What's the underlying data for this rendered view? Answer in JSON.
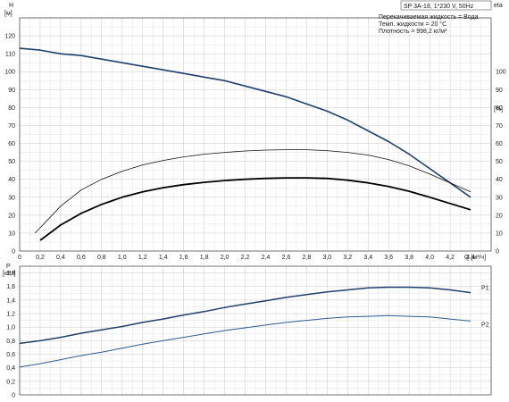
{
  "chart_data": [
    {
      "type": "line",
      "title": "SP 3A-18, 1*230 V, 50Hz",
      "notes": [
        "Перекачиваемая жидкость = Вода",
        "Темп. жидкости = 20 °C",
        "Плотность = 998,2 кг/м³"
      ],
      "xlabel": "Q [м³/ч]",
      "xlim": [
        0,
        4.6
      ],
      "xticks": [
        "0",
        "0,2",
        "0,4",
        "0,6",
        "0,8",
        "1,0",
        "1,2",
        "1,4",
        "1,6",
        "1,8",
        "2,0",
        "2,2",
        "2,4",
        "2,6",
        "2,8",
        "3,0",
        "3,2",
        "3,4",
        "3,6",
        "3,8",
        "4,0",
        "4,2",
        "4,4"
      ],
      "left_axis": {
        "label": "H",
        "unit": "[м]",
        "lim": [
          0,
          130
        ],
        "ticks": [
          "0",
          "10",
          "20",
          "30",
          "40",
          "50",
          "60",
          "70",
          "80",
          "90",
          "100",
          "110",
          "120"
        ]
      },
      "right_axis": {
        "label": "eta",
        "unit": "[%]",
        "lim": [
          0,
          130
        ],
        "ticks": [
          "0",
          "10",
          "20",
          "30",
          "40",
          "50",
          "60",
          "70",
          "80",
          "90",
          "100"
        ]
      },
      "grid": true,
      "series": [
        {
          "axis": "left",
          "color": "#1f3f6e",
          "width": 1.6,
          "x": [
            0,
            0.2,
            0.4,
            0.6,
            0.8,
            1.0,
            1.2,
            1.4,
            1.6,
            1.8,
            2.0,
            2.2,
            2.4,
            2.6,
            2.8,
            3.0,
            3.2,
            3.4,
            3.6,
            3.8,
            4.0,
            4.2,
            4.4
          ],
          "y": [
            113,
            112,
            110,
            109,
            107,
            105,
            103,
            101,
            99,
            97,
            95,
            92,
            89,
            86,
            82,
            78,
            73,
            67,
            61,
            54,
            46,
            38,
            30
          ]
        },
        {
          "axis": "right",
          "color": "#111111",
          "width": 0.8,
          "x": [
            0.15,
            0.2,
            0.4,
            0.6,
            0.8,
            1.0,
            1.2,
            1.4,
            1.6,
            1.8,
            2.0,
            2.2,
            2.4,
            2.6,
            2.8,
            3.0,
            3.2,
            3.4,
            3.6,
            3.8,
            4.0,
            4.2,
            4.4
          ],
          "y": [
            10,
            13,
            25,
            34,
            40,
            44.5,
            48,
            50.5,
            52.5,
            54,
            55,
            55.8,
            56.3,
            56.5,
            56.5,
            56,
            55,
            53.5,
            51,
            47.5,
            43,
            38,
            33
          ]
        },
        {
          "axis": "right",
          "color": "#000000",
          "width": 1.8,
          "x": [
            0.2,
            0.4,
            0.6,
            0.8,
            1.0,
            1.2,
            1.4,
            1.6,
            1.8,
            2.0,
            2.2,
            2.4,
            2.6,
            2.8,
            3.0,
            3.2,
            3.4,
            3.6,
            3.8,
            4.0,
            4.2,
            4.4
          ],
          "y": [
            6,
            14.5,
            21,
            26,
            30,
            33,
            35.3,
            37,
            38.3,
            39.3,
            40,
            40.5,
            40.8,
            40.8,
            40.5,
            39.5,
            38,
            36,
            33.3,
            30,
            26.5,
            23
          ]
        }
      ]
    },
    {
      "type": "line",
      "ylabel": "P",
      "yunit": "[кВт]",
      "xlim": [
        0,
        4.6
      ],
      "ylim": [
        0,
        1.9
      ],
      "yticks": [
        "0",
        "0,2",
        "0,4",
        "0,6",
        "0,8",
        "1,0",
        "1,2",
        "1,4",
        "1,6",
        "1,8"
      ],
      "grid": true,
      "series": [
        {
          "name": "P1",
          "color": "#1f3f6e",
          "width": 1.5,
          "x": [
            0,
            0.2,
            0.4,
            0.6,
            0.8,
            1.0,
            1.2,
            1.4,
            1.6,
            1.8,
            2.0,
            2.2,
            2.4,
            2.6,
            2.8,
            3.0,
            3.2,
            3.4,
            3.6,
            3.8,
            4.0,
            4.2,
            4.4
          ],
          "y": [
            0.76,
            0.8,
            0.85,
            0.91,
            0.96,
            1.01,
            1.07,
            1.12,
            1.18,
            1.23,
            1.29,
            1.34,
            1.39,
            1.44,
            1.48,
            1.52,
            1.55,
            1.58,
            1.59,
            1.59,
            1.58,
            1.55,
            1.51
          ]
        },
        {
          "name": "P2",
          "color": "#2e5a90",
          "width": 1.0,
          "x": [
            0,
            0.2,
            0.4,
            0.6,
            0.8,
            1.0,
            1.2,
            1.4,
            1.6,
            1.8,
            2.0,
            2.2,
            2.4,
            2.6,
            2.8,
            3.0,
            3.2,
            3.4,
            3.6,
            3.8,
            4.0,
            4.2,
            4.4
          ],
          "y": [
            0.41,
            0.46,
            0.52,
            0.58,
            0.63,
            0.69,
            0.75,
            0.8,
            0.85,
            0.9,
            0.95,
            0.99,
            1.03,
            1.07,
            1.1,
            1.13,
            1.15,
            1.16,
            1.17,
            1.16,
            1.15,
            1.12,
            1.09
          ]
        }
      ]
    }
  ]
}
